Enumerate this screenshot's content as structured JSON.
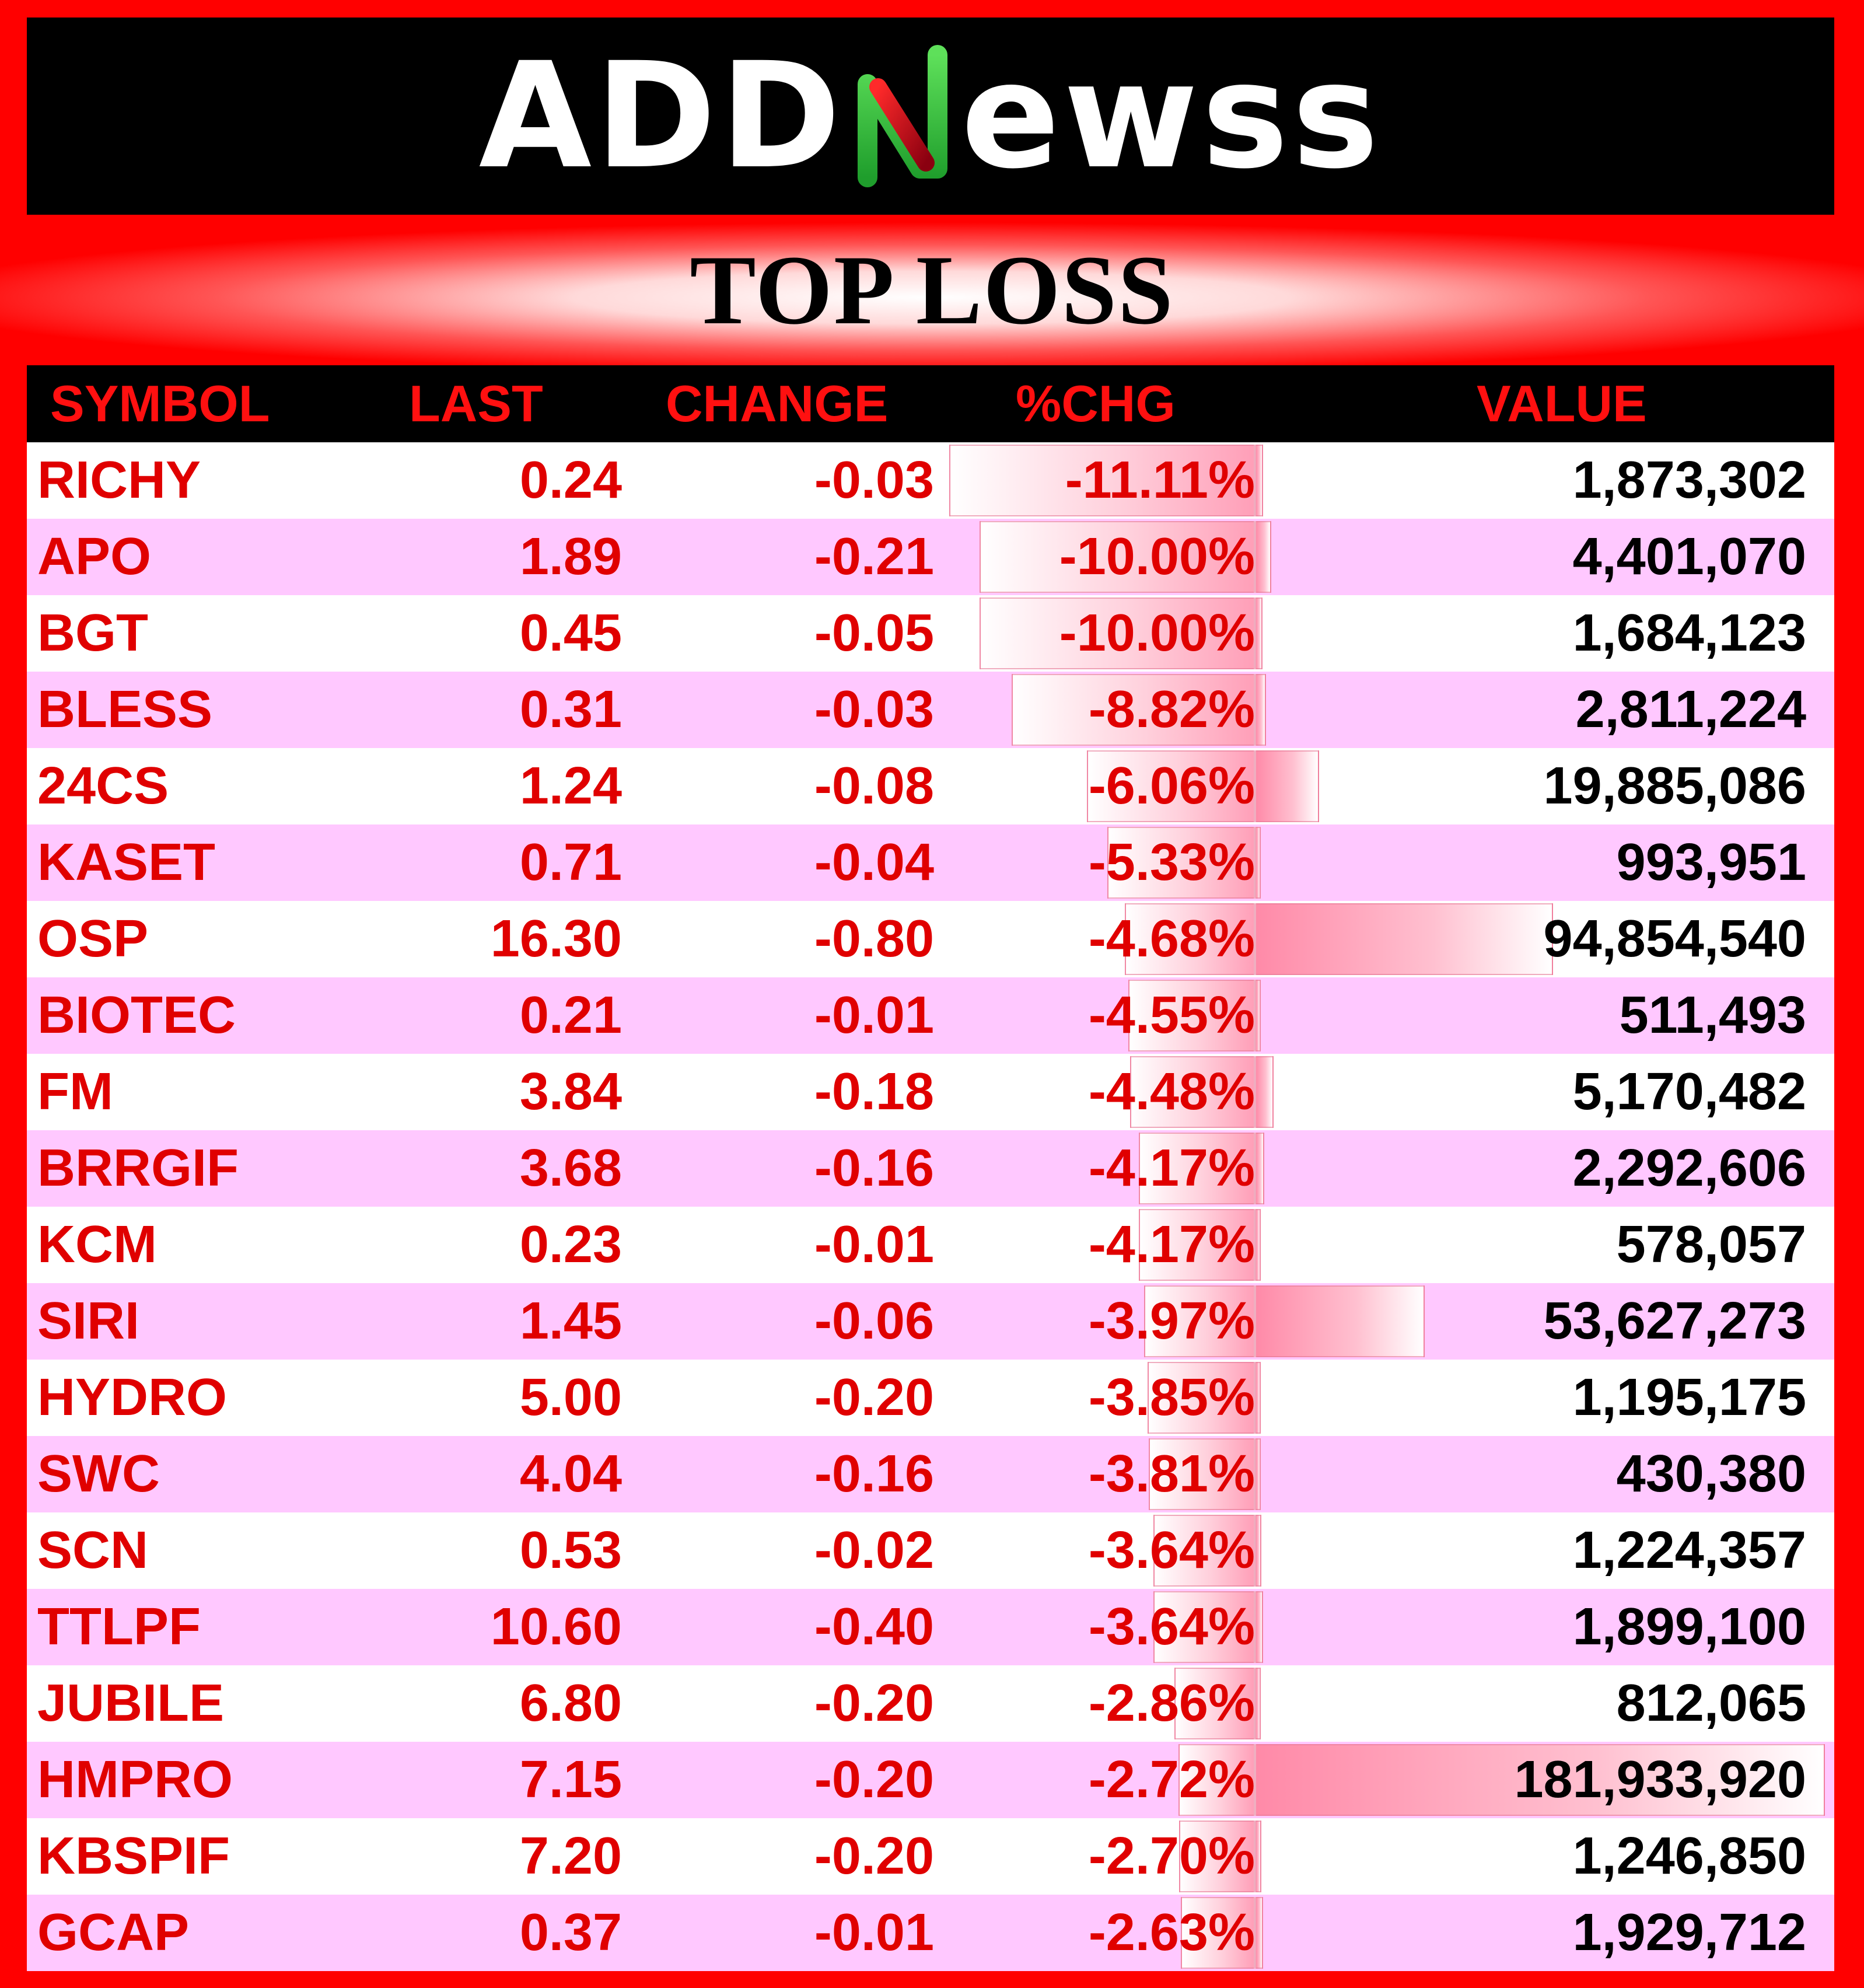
{
  "brand": {
    "logo_text_left": "ADD",
    "logo_text_right": "ewss"
  },
  "title": "TOP LOSS",
  "colors": {
    "accent_red": "#ff0000",
    "row_alt": "#ffc8ff",
    "logo_green": "#2ecc40",
    "logo_red": "#d0102a"
  },
  "columns": {
    "symbol": "SYMBOL",
    "last": "LAST",
    "change": "CHANGE",
    "pct": "%CHG",
    "value": "VALUE"
  },
  "rows": [
    {
      "symbol": "RICHY",
      "last": "0.24",
      "change": "-0.03",
      "pct": "-11.11%",
      "value": "1,873,302"
    },
    {
      "symbol": "APO",
      "last": "1.89",
      "change": "-0.21",
      "pct": "-10.00%",
      "value": "4,401,070"
    },
    {
      "symbol": "BGT",
      "last": "0.45",
      "change": "-0.05",
      "pct": "-10.00%",
      "value": "1,684,123"
    },
    {
      "symbol": "BLESS",
      "last": "0.31",
      "change": "-0.03",
      "pct": "-8.82%",
      "value": "2,811,224"
    },
    {
      "symbol": "24CS",
      "last": "1.24",
      "change": "-0.08",
      "pct": "-6.06%",
      "value": "19,885,086"
    },
    {
      "symbol": "KASET",
      "last": "0.71",
      "change": "-0.04",
      "pct": "-5.33%",
      "value": "993,951"
    },
    {
      "symbol": "OSP",
      "last": "16.30",
      "change": "-0.80",
      "pct": "-4.68%",
      "value": "94,854,540"
    },
    {
      "symbol": "BIOTEC",
      "last": "0.21",
      "change": "-0.01",
      "pct": "-4.55%",
      "value": "511,493"
    },
    {
      "symbol": "FM",
      "last": "3.84",
      "change": "-0.18",
      "pct": "-4.48%",
      "value": "5,170,482"
    },
    {
      "symbol": "BRRGIF",
      "last": "3.68",
      "change": "-0.16",
      "pct": "-4.17%",
      "value": "2,292,606"
    },
    {
      "symbol": "KCM",
      "last": "0.23",
      "change": "-0.01",
      "pct": "-4.17%",
      "value": "578,057"
    },
    {
      "symbol": "SIRI",
      "last": "1.45",
      "change": "-0.06",
      "pct": "-3.97%",
      "value": "53,627,273"
    },
    {
      "symbol": "HYDRO",
      "last": "5.00",
      "change": "-0.20",
      "pct": "-3.85%",
      "value": "1,195,175"
    },
    {
      "symbol": "SWC",
      "last": "4.04",
      "change": "-0.16",
      "pct": "-3.81%",
      "value": "430,380"
    },
    {
      "symbol": "SCN",
      "last": "0.53",
      "change": "-0.02",
      "pct": "-3.64%",
      "value": "1,224,357"
    },
    {
      "symbol": "TTLPF",
      "last": "10.60",
      "change": "-0.40",
      "pct": "-3.64%",
      "value": "1,899,100"
    },
    {
      "symbol": "JUBILE",
      "last": "6.80",
      "change": "-0.20",
      "pct": "-2.86%",
      "value": "812,065"
    },
    {
      "symbol": "HMPRO",
      "last": "7.15",
      "change": "-0.20",
      "pct": "-2.72%",
      "value": "181,933,920"
    },
    {
      "symbol": "KBSPIF",
      "last": "7.20",
      "change": "-0.20",
      "pct": "-2.70%",
      "value": "1,246,850"
    },
    {
      "symbol": "GCAP",
      "last": "0.37",
      "change": "-0.01",
      "pct": "-2.63%",
      "value": "1,929,712"
    }
  ]
}
